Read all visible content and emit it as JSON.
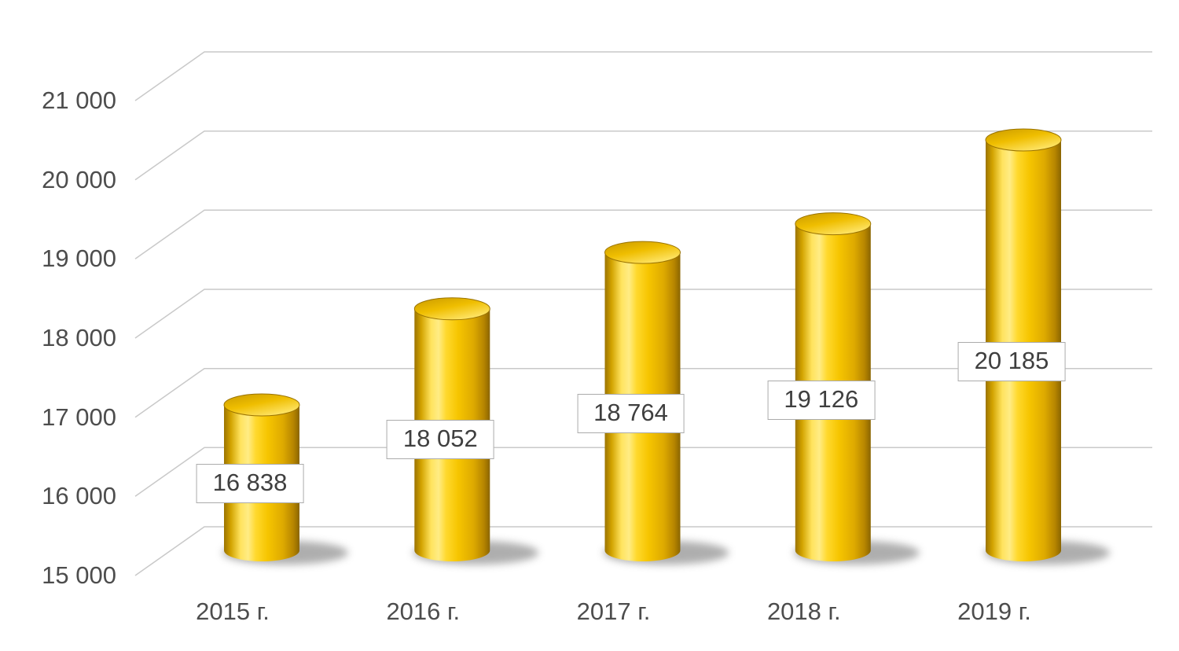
{
  "chart_data": {
    "type": "bar",
    "subtype": "cylinder-3d",
    "title": "",
    "xlabel": "",
    "ylabel": "",
    "grid": true,
    "legend": false,
    "categories": [
      "2015 г.",
      "2016 г.",
      "2017 г.",
      "2018 г.",
      "2019 г."
    ],
    "values": [
      16838,
      18052,
      18764,
      19126,
      20185
    ],
    "data_labels": [
      "16 838",
      "18 052",
      "18 764",
      "19 126",
      "20 185"
    ],
    "y_ticks": [
      15000,
      16000,
      17000,
      18000,
      19000,
      20000,
      21000
    ],
    "y_tick_labels": [
      "15 000",
      "16 000",
      "17 000",
      "18 000",
      "19 000",
      "20 000",
      "21 000"
    ],
    "ylim": [
      15000,
      21000
    ],
    "colors": {
      "bar_fill": "#F7C600",
      "bar_highlight": "#FFEC85",
      "bar_edge_dark": "#8A6500",
      "gridline": "#C9C9C9",
      "axis_text": "#4D4D4D",
      "data_label_text": "#3F3F3F",
      "data_label_border": "#ABABAB",
      "data_label_bg": "#FFFFFF",
      "shadow": "#5E5E5E"
    }
  }
}
